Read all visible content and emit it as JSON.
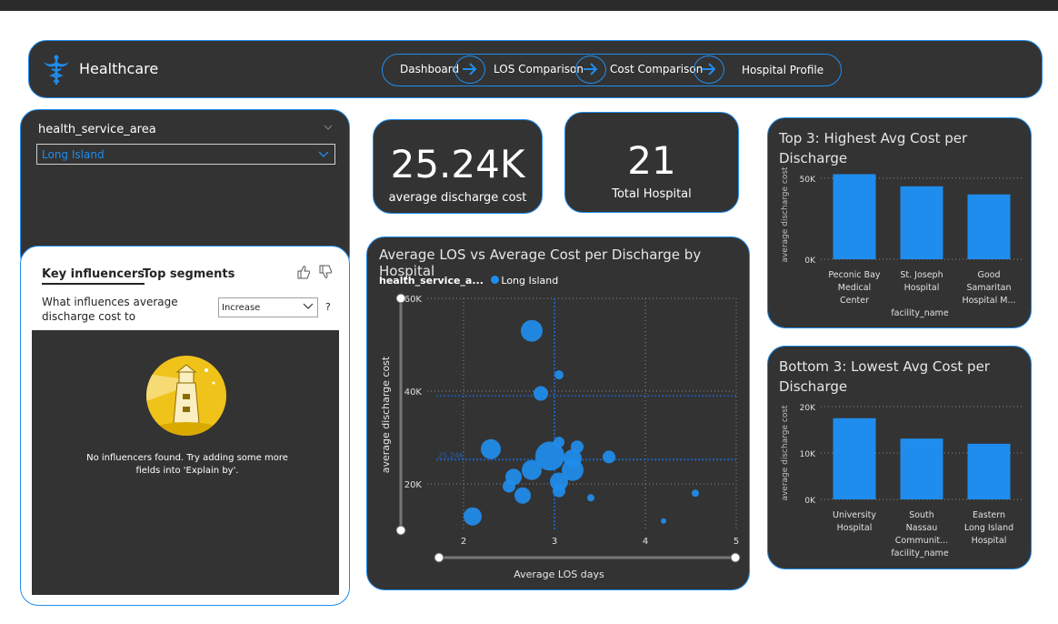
{
  "header": {
    "brand": "Healthcare",
    "nav": [
      {
        "label": "Dashboard"
      },
      {
        "label": "LOS Comparison"
      },
      {
        "label": "Cost Comparison"
      },
      {
        "label": "Hospital Profile"
      }
    ]
  },
  "filter": {
    "label": "health_service_area",
    "selected": "Long Island"
  },
  "key_influencers": {
    "tab_active": "Key influencers",
    "tab_other": "Top segments",
    "question": "What influences average discharge cost to",
    "dropdown_value": "Increase",
    "help": "?",
    "message": "No influencers found. Try adding some more fields into 'Explain by'."
  },
  "kpis": [
    {
      "value": "25.24K",
      "caption": "average discharge cost"
    },
    {
      "value": "21",
      "caption": "Total Hospital"
    }
  ],
  "colors": {
    "accent": "#1f8ded",
    "card_bg": "#333333"
  },
  "chart_data": [
    {
      "type": "scatter",
      "title": "Average LOS vs Average Cost per Discharge by Hospital",
      "legend_title": "health_service_a...",
      "legend_entries": [
        "Long Island"
      ],
      "xlabel": "Average LOS days",
      "ylabel": "average discharge cost",
      "xlim": [
        1.6,
        5
      ],
      "ylim": [
        10000,
        60000
      ],
      "x_ticks": [
        "2",
        "3",
        "4",
        "5"
      ],
      "y_ticks": [
        "20K",
        "40K",
        "60K"
      ],
      "ref_x": 3.0,
      "ref_y": 25240,
      "ref_y_label": "25.24K",
      "points": [
        {
          "x": 2.75,
          "y": 53000,
          "size": 12
        },
        {
          "x": 3.05,
          "y": 43500,
          "size": 5
        },
        {
          "x": 2.85,
          "y": 39500,
          "size": 8
        },
        {
          "x": 3.05,
          "y": 29000,
          "size": 6
        },
        {
          "x": 3.25,
          "y": 28000,
          "size": 7
        },
        {
          "x": 2.3,
          "y": 27500,
          "size": 11
        },
        {
          "x": 2.95,
          "y": 26000,
          "size": 16
        },
        {
          "x": 3.2,
          "y": 25500,
          "size": 10
        },
        {
          "x": 3.6,
          "y": 25800,
          "size": 7
        },
        {
          "x": 2.75,
          "y": 23000,
          "size": 11
        },
        {
          "x": 3.2,
          "y": 23000,
          "size": 12
        },
        {
          "x": 2.55,
          "y": 21500,
          "size": 9
        },
        {
          "x": 3.05,
          "y": 20500,
          "size": 10
        },
        {
          "x": 2.5,
          "y": 19500,
          "size": 7
        },
        {
          "x": 2.65,
          "y": 17500,
          "size": 9
        },
        {
          "x": 3.05,
          "y": 18500,
          "size": 7
        },
        {
          "x": 3.4,
          "y": 17000,
          "size": 4
        },
        {
          "x": 2.1,
          "y": 13000,
          "size": 10
        },
        {
          "x": 4.55,
          "y": 18000,
          "size": 4
        },
        {
          "x": 4.2,
          "y": 12000,
          "size": 3
        }
      ]
    },
    {
      "type": "bar",
      "title": "Top 3: Highest Avg Cost per Discharge",
      "xlabel": "facility_name",
      "ylabel": "average discharge cost",
      "ylim": [
        0,
        55000
      ],
      "y_ticks": [
        "0K",
        "50K"
      ],
      "categories": [
        "Peconic Bay Medical Center",
        "St. Joseph Hospital",
        "Good Samaritan Hospital M..."
      ],
      "category_lines": [
        [
          "Peconic Bay",
          "Medical",
          "Center"
        ],
        [
          "St. Joseph",
          "Hospital"
        ],
        [
          "Good",
          "Samaritan",
          "Hospital M..."
        ]
      ],
      "values": [
        52500,
        45000,
        40000
      ]
    },
    {
      "type": "bar",
      "title": "Bottom 3: Lowest Avg Cost per Discharge",
      "title_lines": [
        "Bottom 3: Lowest Avg Cost per",
        "Discharge"
      ],
      "xlabel": "facility_name",
      "ylabel": "average discharge cost",
      "ylim": [
        0,
        20000
      ],
      "y_ticks": [
        "0K",
        "10K",
        "20K"
      ],
      "categories": [
        "University Hospital",
        "South Nassau Communit...",
        "Eastern Long Island Hospital"
      ],
      "category_lines": [
        [
          "University",
          "Hospital"
        ],
        [
          "South",
          "Nassau",
          "Communit..."
        ],
        [
          "Eastern",
          "Long Island",
          "Hospital"
        ]
      ],
      "values": [
        17500,
        13100,
        12000
      ]
    }
  ]
}
